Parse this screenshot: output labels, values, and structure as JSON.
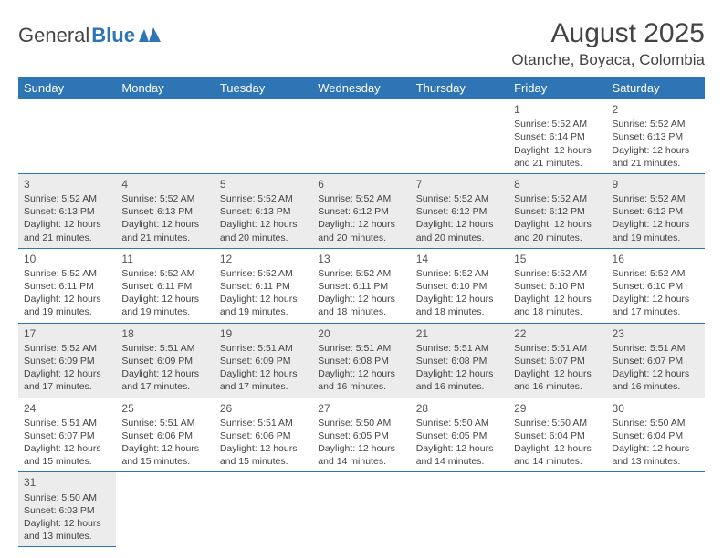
{
  "logo": {
    "text1": "General",
    "text2": "Blue"
  },
  "title": "August 2025",
  "location": "Otanche, Boyaca, Colombia",
  "colors": {
    "header_bg": "#2e75b6",
    "header_fg": "#ffffff",
    "shade_bg": "#ececec",
    "border": "#2e75b6",
    "text": "#444444"
  },
  "dayHeaders": [
    "Sunday",
    "Monday",
    "Tuesday",
    "Wednesday",
    "Thursday",
    "Friday",
    "Saturday"
  ],
  "weeks": [
    [
      null,
      null,
      null,
      null,
      null,
      {
        "n": "1",
        "sr": "5:52 AM",
        "ss": "6:14 PM",
        "dl": "12 hours and 21 minutes."
      },
      {
        "n": "2",
        "sr": "5:52 AM",
        "ss": "6:13 PM",
        "dl": "12 hours and 21 minutes."
      }
    ],
    [
      {
        "n": "3",
        "sr": "5:52 AM",
        "ss": "6:13 PM",
        "dl": "12 hours and 21 minutes."
      },
      {
        "n": "4",
        "sr": "5:52 AM",
        "ss": "6:13 PM",
        "dl": "12 hours and 21 minutes."
      },
      {
        "n": "5",
        "sr": "5:52 AM",
        "ss": "6:13 PM",
        "dl": "12 hours and 20 minutes."
      },
      {
        "n": "6",
        "sr": "5:52 AM",
        "ss": "6:12 PM",
        "dl": "12 hours and 20 minutes."
      },
      {
        "n": "7",
        "sr": "5:52 AM",
        "ss": "6:12 PM",
        "dl": "12 hours and 20 minutes."
      },
      {
        "n": "8",
        "sr": "5:52 AM",
        "ss": "6:12 PM",
        "dl": "12 hours and 20 minutes."
      },
      {
        "n": "9",
        "sr": "5:52 AM",
        "ss": "6:12 PM",
        "dl": "12 hours and 19 minutes."
      }
    ],
    [
      {
        "n": "10",
        "sr": "5:52 AM",
        "ss": "6:11 PM",
        "dl": "12 hours and 19 minutes."
      },
      {
        "n": "11",
        "sr": "5:52 AM",
        "ss": "6:11 PM",
        "dl": "12 hours and 19 minutes."
      },
      {
        "n": "12",
        "sr": "5:52 AM",
        "ss": "6:11 PM",
        "dl": "12 hours and 19 minutes."
      },
      {
        "n": "13",
        "sr": "5:52 AM",
        "ss": "6:11 PM",
        "dl": "12 hours and 18 minutes."
      },
      {
        "n": "14",
        "sr": "5:52 AM",
        "ss": "6:10 PM",
        "dl": "12 hours and 18 minutes."
      },
      {
        "n": "15",
        "sr": "5:52 AM",
        "ss": "6:10 PM",
        "dl": "12 hours and 18 minutes."
      },
      {
        "n": "16",
        "sr": "5:52 AM",
        "ss": "6:10 PM",
        "dl": "12 hours and 17 minutes."
      }
    ],
    [
      {
        "n": "17",
        "sr": "5:52 AM",
        "ss": "6:09 PM",
        "dl": "12 hours and 17 minutes."
      },
      {
        "n": "18",
        "sr": "5:51 AM",
        "ss": "6:09 PM",
        "dl": "12 hours and 17 minutes."
      },
      {
        "n": "19",
        "sr": "5:51 AM",
        "ss": "6:09 PM",
        "dl": "12 hours and 17 minutes."
      },
      {
        "n": "20",
        "sr": "5:51 AM",
        "ss": "6:08 PM",
        "dl": "12 hours and 16 minutes."
      },
      {
        "n": "21",
        "sr": "5:51 AM",
        "ss": "6:08 PM",
        "dl": "12 hours and 16 minutes."
      },
      {
        "n": "22",
        "sr": "5:51 AM",
        "ss": "6:07 PM",
        "dl": "12 hours and 16 minutes."
      },
      {
        "n": "23",
        "sr": "5:51 AM",
        "ss": "6:07 PM",
        "dl": "12 hours and 16 minutes."
      }
    ],
    [
      {
        "n": "24",
        "sr": "5:51 AM",
        "ss": "6:07 PM",
        "dl": "12 hours and 15 minutes."
      },
      {
        "n": "25",
        "sr": "5:51 AM",
        "ss": "6:06 PM",
        "dl": "12 hours and 15 minutes."
      },
      {
        "n": "26",
        "sr": "5:51 AM",
        "ss": "6:06 PM",
        "dl": "12 hours and 15 minutes."
      },
      {
        "n": "27",
        "sr": "5:50 AM",
        "ss": "6:05 PM",
        "dl": "12 hours and 14 minutes."
      },
      {
        "n": "28",
        "sr": "5:50 AM",
        "ss": "6:05 PM",
        "dl": "12 hours and 14 minutes."
      },
      {
        "n": "29",
        "sr": "5:50 AM",
        "ss": "6:04 PM",
        "dl": "12 hours and 14 minutes."
      },
      {
        "n": "30",
        "sr": "5:50 AM",
        "ss": "6:04 PM",
        "dl": "12 hours and 13 minutes."
      }
    ],
    [
      {
        "n": "31",
        "sr": "5:50 AM",
        "ss": "6:03 PM",
        "dl": "12 hours and 13 minutes."
      },
      null,
      null,
      null,
      null,
      null,
      null
    ]
  ],
  "labels": {
    "sunrise": "Sunrise:",
    "sunset": "Sunset:",
    "daylight": "Daylight:"
  }
}
